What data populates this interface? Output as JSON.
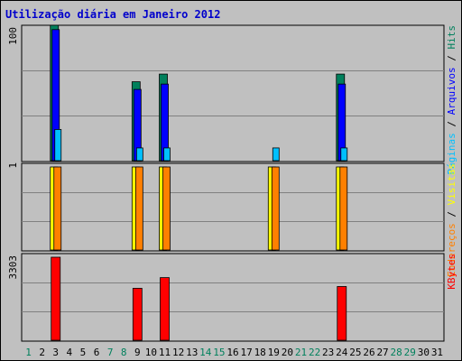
{
  "chart_data": {
    "type": "bar",
    "title": "Utilização diária em Janeiro 2012",
    "categories": [
      "1",
      "2",
      "3",
      "4",
      "5",
      "6",
      "7",
      "8",
      "9",
      "10",
      "11",
      "12",
      "13",
      "14",
      "15",
      "16",
      "17",
      "18",
      "19",
      "20",
      "21",
      "22",
      "23",
      "24",
      "25",
      "26",
      "27",
      "28",
      "29",
      "30",
      "31"
    ],
    "weekend_days": [
      "1",
      "7",
      "8",
      "14",
      "15",
      "21",
      "22",
      "28",
      "29"
    ],
    "grid": true,
    "panels": [
      {
        "name": "hits-pages-files",
        "scale": "log",
        "ylim": [
          1,
          100
        ],
        "ytick_labels": [
          "100",
          "1"
        ],
        "legend": [
          {
            "label": "Hits",
            "color": "#00805c"
          },
          {
            "label": "Arquivos",
            "color": "#0000ff"
          },
          {
            "label": "Páginas",
            "color": "#00c0ff"
          }
        ],
        "series": [
          {
            "name": "Hits",
            "color": "#00805c",
            "values": [
              0,
              0,
              100,
              0,
              0,
              0,
              0,
              0,
              12,
              0,
              16,
              0,
              0,
              0,
              0,
              0,
              0,
              0,
              0,
              0,
              0,
              0,
              0,
              16,
              0,
              0,
              0,
              0,
              0,
              0,
              0
            ]
          },
          {
            "name": "Arquivos",
            "color": "#0000ff",
            "values": [
              0,
              0,
              85,
              0,
              0,
              0,
              0,
              0,
              9,
              0,
              11,
              0,
              0,
              0,
              0,
              0,
              0,
              0,
              0,
              0,
              0,
              0,
              0,
              11,
              0,
              0,
              0,
              0,
              0,
              0,
              0
            ]
          },
          {
            "name": "Páginas",
            "color": "#00c0ff",
            "values": [
              0,
              0,
              2,
              0,
              0,
              0,
              0,
              0,
              1,
              0,
              1,
              0,
              0,
              0,
              0,
              0,
              0,
              0,
              1,
              0,
              0,
              0,
              0,
              1,
              0,
              0,
              0,
              0,
              0,
              0,
              0
            ]
          }
        ]
      },
      {
        "name": "visits-addresses",
        "scale": "linear",
        "ylim": [
          0,
          1
        ],
        "ytick_labels": [
          "1"
        ],
        "legend": [
          {
            "label": "Visitas",
            "color": "#ffff00"
          },
          {
            "label": "Endereços",
            "color": "#ff8000"
          }
        ],
        "series": [
          {
            "name": "Visitas",
            "color": "#ffff00",
            "values": [
              0,
              0,
              1,
              0,
              0,
              0,
              0,
              0,
              1,
              0,
              1,
              0,
              0,
              0,
              0,
              0,
              0,
              0,
              1,
              0,
              0,
              0,
              0,
              1,
              0,
              0,
              0,
              0,
              0,
              0,
              0
            ]
          },
          {
            "name": "Endereços",
            "color": "#ff8000",
            "values": [
              0,
              0,
              1,
              0,
              0,
              0,
              0,
              0,
              1,
              0,
              1,
              0,
              0,
              0,
              0,
              0,
              0,
              0,
              1,
              0,
              0,
              0,
              0,
              1,
              0,
              0,
              0,
              0,
              0,
              0,
              0
            ]
          }
        ]
      },
      {
        "name": "kbytes",
        "scale": "linear",
        "ylim": [
          0,
          3303
        ],
        "ytick_labels": [
          "3303"
        ],
        "legend": [
          {
            "label": "KBytes",
            "color": "#ff0000"
          }
        ],
        "series": [
          {
            "name": "KBytes",
            "color": "#ff0000",
            "values": [
              0,
              0,
              3303,
              0,
              0,
              0,
              0,
              0,
              2080,
              0,
              2500,
              0,
              0,
              0,
              0,
              0,
              0,
              0,
              0,
              0,
              0,
              0,
              0,
              2150,
              0,
              0,
              0,
              0,
              0,
              0,
              0
            ]
          }
        ]
      }
    ]
  }
}
